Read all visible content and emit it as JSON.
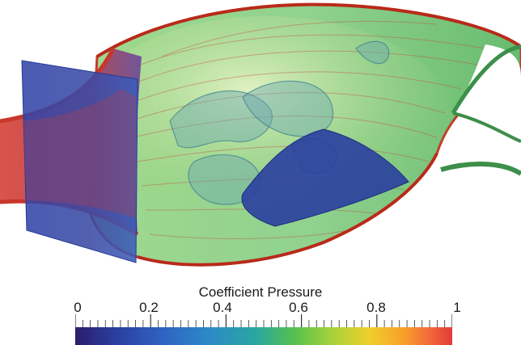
{
  "legend": {
    "title": "Coefficient Pressure",
    "ticks": [
      "0",
      "0.2",
      "0.4",
      "0.6",
      "0.8",
      "1"
    ]
  },
  "scene": {
    "subject": "flow-streamlines-visualization",
    "colors": {
      "low": "#2b2b9a",
      "mid": "#4fbf4f",
      "high": "#e23a3a"
    }
  }
}
